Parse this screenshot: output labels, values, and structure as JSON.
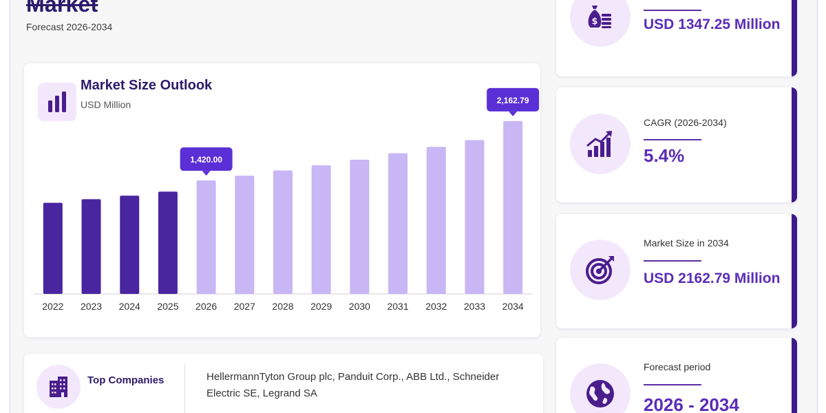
{
  "header": {
    "title": "Market",
    "subtitle": "Forecast 2026-2034"
  },
  "chart_card": {
    "title": "Market Size Outlook",
    "unit": "USD Million"
  },
  "chart_data": {
    "type": "bar",
    "title": "Market Size Outlook",
    "ylabel": "USD Million",
    "xlabel": "",
    "categories": [
      "2022",
      "2023",
      "2024",
      "2025",
      "2026",
      "2027",
      "2028",
      "2029",
      "2030",
      "2031",
      "2032",
      "2033",
      "2034"
    ],
    "values": [
      1140,
      1185,
      1230,
      1280,
      1420,
      1480,
      1545,
      1610,
      1680,
      1760,
      1840,
      1925,
      2162.79
    ],
    "historical_color": "#4a25a0",
    "forecast_color": "#c8b6f5",
    "forecast_start": "2026",
    "data_labels": [
      {
        "category": "2026",
        "text": "1,420.00"
      },
      {
        "category": "2034",
        "text": "2,162.79"
      }
    ],
    "label_color": "#5b2fd6",
    "ylim": [
      0,
      2300
    ],
    "grid": false
  },
  "stats": [
    {
      "label": "",
      "value": "USD 1347.25 Million",
      "icon": "money-bag-icon"
    },
    {
      "label": "CAGR (2026-2034)",
      "value": "5.4%",
      "icon": "growth-chart-icon"
    },
    {
      "label": "Market Size in 2034",
      "value": "USD 2162.79 Million",
      "icon": "target-icon"
    },
    {
      "label": "Forecast period",
      "value": "2026 - 2034",
      "icon": "globe-icon"
    }
  ],
  "companies": {
    "label": "Top Companies",
    "text": "HellermannTyton Group plc, Panduit Corp., ABB Ltd., Schneider Electric SE, Legrand SA",
    "icon": "buildings-icon"
  },
  "colors": {
    "accent": "#5a2db8",
    "dark": "#2b1b6b",
    "icon_bg": "#f3e8fb",
    "card_border": "#3d1a8a"
  }
}
